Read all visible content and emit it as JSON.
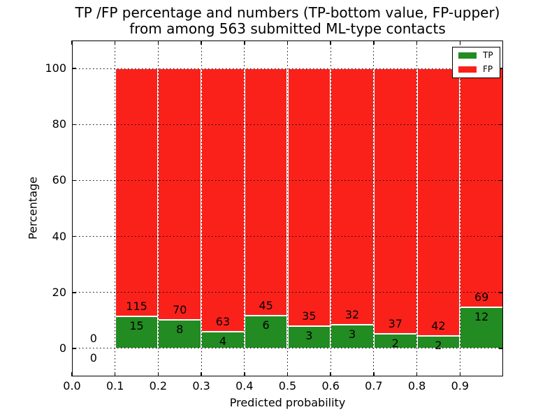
{
  "figure": {
    "title_line1": "TP /FP percentage and numbers (TP-bottom value, FP-upper)",
    "title_line2": "from among 563 submitted ML-type contacts"
  },
  "axes": {
    "xlabel": "Predicted probability",
    "ylabel": "Percentage",
    "xticks": [
      "0.0",
      "0.1",
      "0.2",
      "0.3",
      "0.4",
      "0.5",
      "0.6",
      "0.7",
      "0.8",
      "0.9"
    ],
    "yticks": [
      "0",
      "20",
      "40",
      "60",
      "80",
      "100"
    ],
    "xlim": [
      0.0,
      1.0
    ],
    "ylim": [
      -10,
      110
    ],
    "grid_style": "dotted-black-over-bars"
  },
  "legend": {
    "position": "upper-right",
    "entries": [
      {
        "label": "TP",
        "color": "#228B22"
      },
      {
        "label": "FP",
        "color": "#FB211B"
      }
    ]
  },
  "chart_data": {
    "type": "bar",
    "stacked": true,
    "normalized": "each bin scaled to 100 percent, annotated with raw counts (TP bottom value, FP upper)",
    "title": "TP /FP percentage and numbers (TP-bottom value, FP-upper) from among 563 submitted ML-type contacts",
    "xlabel": "Predicted probability",
    "ylabel": "Percentage",
    "total_contacts": 563,
    "series_names": [
      "TP",
      "FP"
    ],
    "bins": [
      {
        "x0": 0.0,
        "x1": 0.1,
        "tp": 0,
        "fp": 0
      },
      {
        "x0": 0.1,
        "x1": 0.2,
        "tp": 15,
        "fp": 115
      },
      {
        "x0": 0.2,
        "x1": 0.3,
        "tp": 8,
        "fp": 70
      },
      {
        "x0": 0.3,
        "x1": 0.4,
        "tp": 4,
        "fp": 63
      },
      {
        "x0": 0.4,
        "x1": 0.5,
        "tp": 6,
        "fp": 45
      },
      {
        "x0": 0.5,
        "x1": 0.6,
        "tp": 3,
        "fp": 35
      },
      {
        "x0": 0.6,
        "x1": 0.7,
        "tp": 3,
        "fp": 32
      },
      {
        "x0": 0.7,
        "x1": 0.8,
        "tp": 2,
        "fp": 37
      },
      {
        "x0": 0.8,
        "x1": 0.9,
        "tp": 2,
        "fp": 42
      },
      {
        "x0": 0.9,
        "x1": 1.0,
        "tp": 12,
        "fp": 69
      }
    ]
  }
}
